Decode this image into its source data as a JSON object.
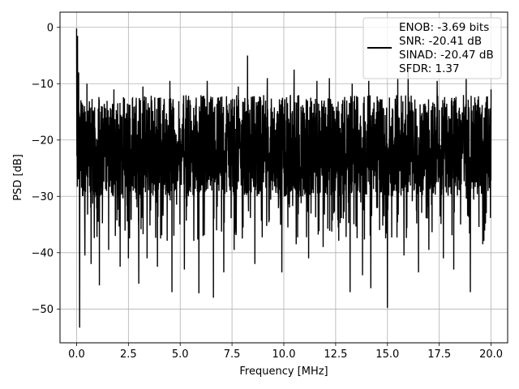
{
  "chart_data": {
    "type": "line",
    "xlabel": "Frequency [MHz]",
    "ylabel": "PSD [dB]",
    "xlim": [
      -0.8,
      20.8
    ],
    "ylim": [
      -56,
      2.7
    ],
    "xticks": [
      0.0,
      2.5,
      5.0,
      7.5,
      10.0,
      12.5,
      15.0,
      17.5,
      20.0
    ],
    "xtick_labels": [
      "0.0",
      "2.5",
      "5.0",
      "7.5",
      "10.0",
      "12.5",
      "15.0",
      "17.5",
      "20.0"
    ],
    "yticks": [
      0,
      -10,
      -20,
      -30,
      -40,
      -50
    ],
    "ytick_labels": [
      "0",
      "−10",
      "−20",
      "−30",
      "−40",
      "−50"
    ],
    "grid": true,
    "legend_position": "top-right",
    "series": [
      {
        "color": "#000000",
        "legend_lines": [
          "ENOB: -3.69 bits",
          "SNR: -20.41 dB",
          "SINAD: -20.47 dB",
          "SFDR: 1.37"
        ],
        "x_range": [
          0,
          20
        ],
        "typical_range": [
          -30,
          -12
        ],
        "noise_floor_mean": -21,
        "dips": [
          [
            0.15,
            -53.3
          ],
          [
            0.4,
            -40.5
          ],
          [
            0.7,
            -42.0
          ],
          [
            1.1,
            -45.8
          ],
          [
            1.55,
            -39.5
          ],
          [
            2.1,
            -42.5
          ],
          [
            2.5,
            -41.0
          ],
          [
            3.0,
            -45.5
          ],
          [
            3.4,
            -41.0
          ],
          [
            3.9,
            -42.5
          ],
          [
            4.6,
            -47.0
          ],
          [
            5.2,
            -43.0
          ],
          [
            5.9,
            -47.2
          ],
          [
            6.6,
            -48.0
          ],
          [
            7.1,
            -43.5
          ],
          [
            7.6,
            -39.5
          ],
          [
            8.6,
            -42.0
          ],
          [
            9.2,
            -40.0
          ],
          [
            9.9,
            -43.5
          ],
          [
            10.6,
            -38.5
          ],
          [
            11.2,
            -41.0
          ],
          [
            11.9,
            -39.0
          ],
          [
            13.2,
            -47.0
          ],
          [
            13.8,
            -44.0
          ],
          [
            14.2,
            -46.3
          ],
          [
            15.0,
            -49.8
          ],
          [
            15.8,
            -40.5
          ],
          [
            16.5,
            -43.5
          ],
          [
            17.0,
            -39.5
          ],
          [
            17.7,
            -41.0
          ],
          [
            18.2,
            -43.0
          ],
          [
            19.0,
            -47.0
          ],
          [
            19.6,
            -38.5
          ]
        ],
        "peaks": [
          [
            0.0,
            -0.2
          ],
          [
            0.05,
            -1.5
          ],
          [
            0.1,
            -8.0
          ],
          [
            0.5,
            -10.0
          ],
          [
            1.8,
            -11.0
          ],
          [
            3.2,
            -10.5
          ],
          [
            4.5,
            -9.5
          ],
          [
            6.3,
            -9.5
          ],
          [
            7.8,
            -10.5
          ],
          [
            8.25,
            -5.0
          ],
          [
            9.2,
            -9.0
          ],
          [
            10.5,
            -7.5
          ],
          [
            11.6,
            -9.5
          ],
          [
            12.2,
            -9.0
          ],
          [
            13.3,
            -10.0
          ],
          [
            14.1,
            -9.5
          ],
          [
            15.5,
            -9.0
          ],
          [
            16.0,
            -7.5
          ],
          [
            17.4,
            -9.5
          ],
          [
            18.8,
            -9.0
          ],
          [
            20.0,
            -11.0
          ]
        ]
      }
    ]
  }
}
